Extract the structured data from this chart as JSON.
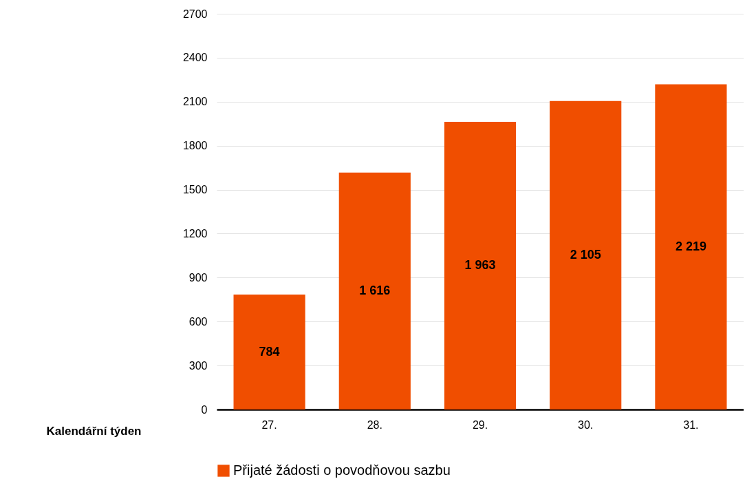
{
  "chart_data": {
    "type": "bar",
    "xlabel": "Kalendářní týden",
    "categories": [
      "27.",
      "28.",
      "29.",
      "30.",
      "31."
    ],
    "series": [
      {
        "name": "Přijaté žádosti o povodňovou sazbu",
        "color": "#f04e00",
        "values": [
          784,
          1616,
          1963,
          2105,
          2219
        ],
        "value_labels": [
          "784",
          "1 616",
          "1 963",
          "2 105",
          "2 219"
        ]
      }
    ],
    "ylim": [
      0,
      2700
    ],
    "yticks": [
      0,
      300,
      600,
      900,
      1200,
      1500,
      1800,
      2100,
      2400,
      2700
    ],
    "grid": "y",
    "legend": "bottom"
  }
}
